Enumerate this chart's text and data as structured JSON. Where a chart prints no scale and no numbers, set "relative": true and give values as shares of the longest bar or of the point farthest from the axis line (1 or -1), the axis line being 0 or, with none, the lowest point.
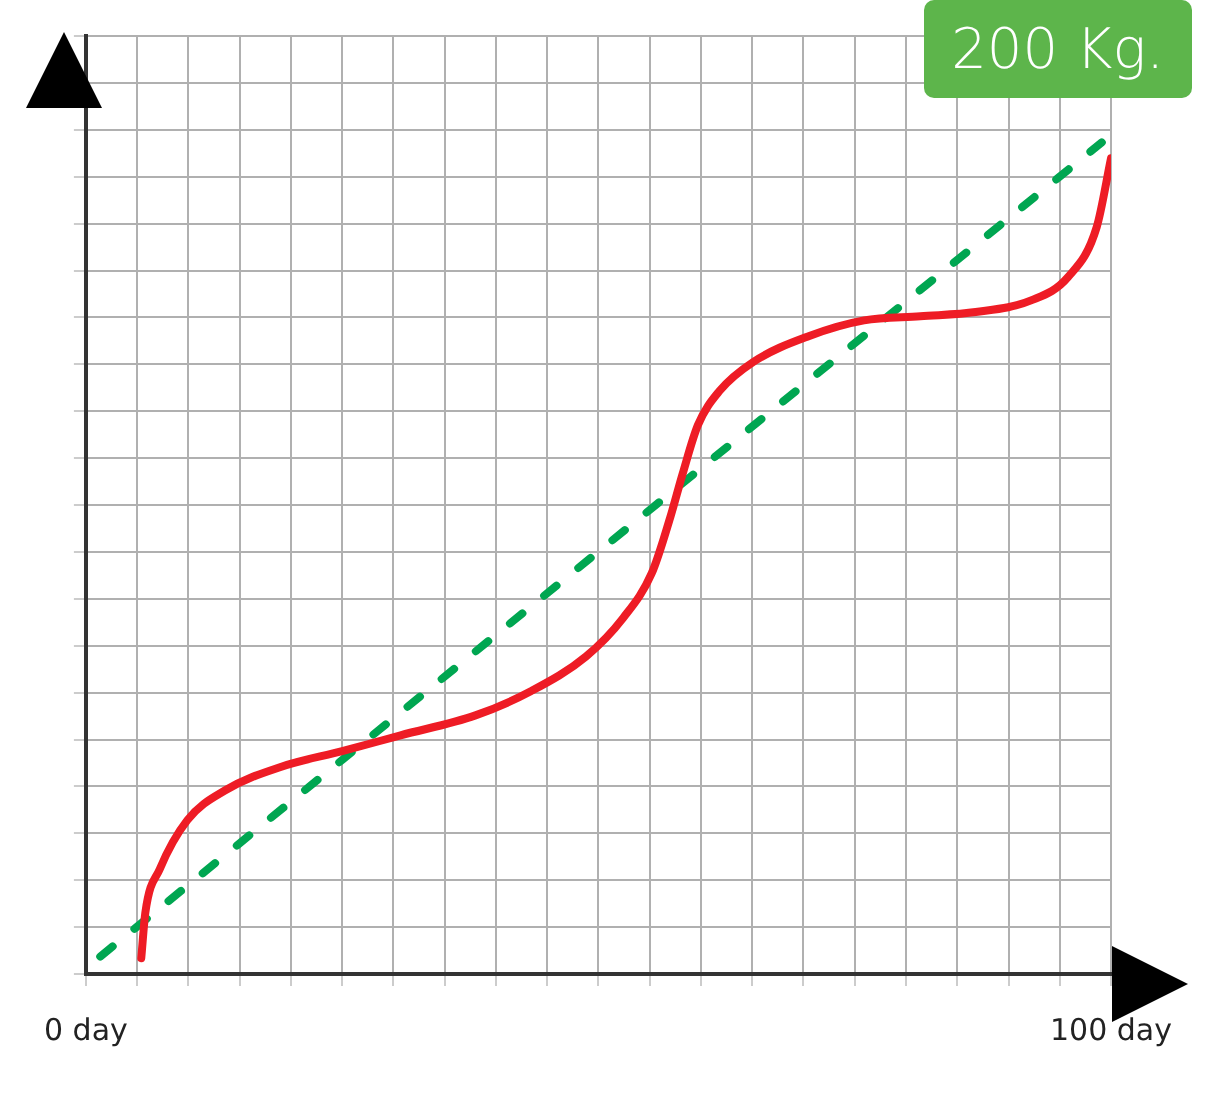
{
  "chart_data": {
    "type": "line",
    "relative": true,
    "annotations": [
      "200 Kg."
    ],
    "xlim": [
      0,
      100
    ],
    "xticks": [
      {
        "value": 0,
        "label": "0 day"
      },
      {
        "value": 5,
        "label": null
      },
      {
        "value": 10,
        "label": null
      },
      {
        "value": 15,
        "label": null
      },
      {
        "value": 20,
        "label": null
      },
      {
        "value": 25,
        "label": null
      },
      {
        "value": 30,
        "label": null
      },
      {
        "value": 35,
        "label": null
      },
      {
        "value": 40,
        "label": null
      },
      {
        "value": 45,
        "label": null
      },
      {
        "value": 50,
        "label": null
      },
      {
        "value": 55,
        "label": null
      },
      {
        "value": 60,
        "label": null
      },
      {
        "value": 65,
        "label": null
      },
      {
        "value": 70,
        "label": null
      },
      {
        "value": 75,
        "label": null
      },
      {
        "value": 80,
        "label": null
      },
      {
        "value": 85,
        "label": null
      },
      {
        "value": 90,
        "label": null
      },
      {
        "value": 95,
        "label": null
      },
      {
        "value": 100,
        "label": "100 day"
      }
    ],
    "grid": true,
    "legend": false,
    "marker": "none",
    "series": [
      {
        "color": "#ee1c25",
        "line_style": "solid",
        "x": [
          5.4,
          5.8,
          7.2,
          9.9,
          13.6,
          19.0,
          25.0,
          30.7,
          38.0,
          43.4,
          48.8,
          52.4,
          55.2,
          57.0,
          58.2,
          59.7,
          61.8,
          65.1,
          70.5,
          75.9,
          81.4,
          86.8,
          92.2,
          95.8,
          98.6,
          100
        ],
        "values": [
          0.019,
          0.074,
          0.126,
          0.185,
          0.221,
          0.249,
          0.268,
          0.287,
          0.311,
          0.34,
          0.382,
          0.428,
          0.482,
          0.549,
          0.601,
          0.66,
          0.701,
          0.736,
          0.767,
          0.786,
          0.791,
          0.796,
          0.81,
          0.838,
          0.898,
          0.981
        ]
      },
      {
        "color": "#00a651",
        "line_style": "dashed",
        "x": [
          1.4,
          99.1
        ],
        "values": [
          0.021,
          1
        ]
      }
    ]
  }
}
